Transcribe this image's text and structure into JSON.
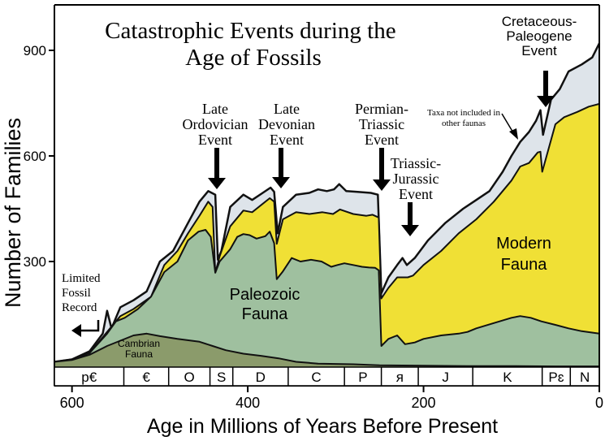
{
  "chart_data": {
    "type": "area",
    "title": "Catastrophic Events during the Age of Fossils",
    "xlabel": "Age in Millions of Years Before Present",
    "ylabel": "Number of Families",
    "xlim": [
      620,
      0
    ],
    "ylim": [
      0,
      1000
    ],
    "x_ticks": [
      600,
      400,
      200,
      0
    ],
    "y_ticks": [
      300,
      600,
      900
    ],
    "grid": false,
    "series": [
      {
        "name": "Cambrian Fauna",
        "color": "#8b9b6b",
        "points": [
          [
            620,
            15
          ],
          [
            600,
            20
          ],
          [
            580,
            35
          ],
          [
            560,
            60
          ],
          [
            545,
            75
          ],
          [
            530,
            90
          ],
          [
            515,
            95
          ],
          [
            500,
            88
          ],
          [
            480,
            80
          ],
          [
            455,
            72
          ],
          [
            440,
            60
          ],
          [
            425,
            48
          ],
          [
            405,
            38
          ],
          [
            385,
            32
          ],
          [
            365,
            25
          ],
          [
            345,
            15
          ],
          [
            320,
            10
          ],
          [
            280,
            8
          ],
          [
            250,
            5
          ],
          [
            200,
            4
          ],
          [
            150,
            3
          ],
          [
            100,
            3
          ],
          [
            50,
            2
          ],
          [
            0,
            2
          ]
        ]
      },
      {
        "name": "Paleozoic Fauna",
        "color": "#9fc09f",
        "points": [
          [
            620,
            15
          ],
          [
            600,
            22
          ],
          [
            580,
            40
          ],
          [
            560,
            95
          ],
          [
            550,
            130
          ],
          [
            540,
            140
          ],
          [
            525,
            165
          ],
          [
            510,
            200
          ],
          [
            495,
            270
          ],
          [
            480,
            300
          ],
          [
            468,
            360
          ],
          [
            456,
            385
          ],
          [
            448,
            390
          ],
          [
            442,
            370
          ],
          [
            437,
            268
          ],
          [
            432,
            300
          ],
          [
            420,
            335
          ],
          [
            412,
            370
          ],
          [
            405,
            378
          ],
          [
            398,
            375
          ],
          [
            390,
            365
          ],
          [
            380,
            372
          ],
          [
            375,
            385
          ],
          [
            370,
            352
          ],
          [
            367,
            250
          ],
          [
            360,
            272
          ],
          [
            350,
            310
          ],
          [
            340,
            300
          ],
          [
            328,
            305
          ],
          [
            316,
            300
          ],
          [
            305,
            285
          ],
          [
            298,
            290
          ],
          [
            290,
            295
          ],
          [
            280,
            290
          ],
          [
            270,
            285
          ],
          [
            262,
            283
          ],
          [
            255,
            282
          ],
          [
            251,
            275
          ],
          [
            248,
            60
          ],
          [
            240,
            80
          ],
          [
            230,
            90
          ],
          [
            221,
            65
          ],
          [
            210,
            70
          ],
          [
            200,
            80
          ],
          [
            180,
            90
          ],
          [
            160,
            95
          ],
          [
            150,
            100
          ],
          [
            140,
            110
          ],
          [
            120,
            125
          ],
          [
            100,
            140
          ],
          [
            90,
            145
          ],
          [
            78,
            140
          ],
          [
            66,
            130
          ],
          [
            50,
            120
          ],
          [
            35,
            110
          ],
          [
            20,
            102
          ],
          [
            0,
            95
          ]
        ]
      },
      {
        "name": "Modern Fauna",
        "color": "#f0e035",
        "points": [
          [
            620,
            15
          ],
          [
            600,
            22
          ],
          [
            580,
            40
          ],
          [
            560,
            100
          ],
          [
            545,
            145
          ],
          [
            530,
            165
          ],
          [
            510,
            200
          ],
          [
            495,
            290
          ],
          [
            480,
            330
          ],
          [
            468,
            380
          ],
          [
            455,
            430
          ],
          [
            445,
            470
          ],
          [
            440,
            455
          ],
          [
            437,
            268
          ],
          [
            432,
            315
          ],
          [
            420,
            400
          ],
          [
            405,
            445
          ],
          [
            395,
            440
          ],
          [
            385,
            460
          ],
          [
            375,
            480
          ],
          [
            370,
            470
          ],
          [
            367,
            350
          ],
          [
            360,
            420
          ],
          [
            345,
            440
          ],
          [
            330,
            435
          ],
          [
            315,
            440
          ],
          [
            303,
            435
          ],
          [
            295,
            448
          ],
          [
            280,
            435
          ],
          [
            265,
            430
          ],
          [
            258,
            433
          ],
          [
            251,
            425
          ],
          [
            248,
            195
          ],
          [
            240,
            225
          ],
          [
            230,
            255
          ],
          [
            225,
            255
          ],
          [
            218,
            255
          ],
          [
            212,
            260
          ],
          [
            200,
            290
          ],
          [
            180,
            330
          ],
          [
            160,
            380
          ],
          [
            140,
            420
          ],
          [
            120,
            470
          ],
          [
            100,
            530
          ],
          [
            90,
            570
          ],
          [
            80,
            580
          ],
          [
            70,
            610
          ],
          [
            67,
            612
          ],
          [
            65,
            555
          ],
          [
            60,
            600
          ],
          [
            50,
            690
          ],
          [
            40,
            710
          ],
          [
            25,
            725
          ],
          [
            12,
            740
          ],
          [
            0,
            748
          ]
        ]
      },
      {
        "name": "Taxa not included in other faunas",
        "color": "#dee4ea",
        "points": [
          [
            620,
            15
          ],
          [
            600,
            22
          ],
          [
            580,
            45
          ],
          [
            565,
            95
          ],
          [
            560,
            160
          ],
          [
            555,
            110
          ],
          [
            545,
            170
          ],
          [
            530,
            190
          ],
          [
            515,
            215
          ],
          [
            500,
            300
          ],
          [
            485,
            330
          ],
          [
            470,
            400
          ],
          [
            455,
            470
          ],
          [
            445,
            500
          ],
          [
            437,
            490
          ],
          [
            434,
            305
          ],
          [
            430,
            330
          ],
          [
            420,
            455
          ],
          [
            405,
            490
          ],
          [
            395,
            475
          ],
          [
            383,
            495
          ],
          [
            374,
            510
          ],
          [
            370,
            498
          ],
          [
            366,
            380
          ],
          [
            360,
            455
          ],
          [
            345,
            490
          ],
          [
            330,
            495
          ],
          [
            320,
            505
          ],
          [
            310,
            500
          ],
          [
            302,
            505
          ],
          [
            296,
            520
          ],
          [
            288,
            500
          ],
          [
            275,
            498
          ],
          [
            260,
            495
          ],
          [
            252,
            490
          ],
          [
            248,
            210
          ],
          [
            240,
            255
          ],
          [
            230,
            290
          ],
          [
            224,
            310
          ],
          [
            219,
            290
          ],
          [
            210,
            310
          ],
          [
            195,
            360
          ],
          [
            175,
            410
          ],
          [
            155,
            450
          ],
          [
            140,
            475
          ],
          [
            125,
            500
          ],
          [
            110,
            555
          ],
          [
            100,
            600
          ],
          [
            90,
            640
          ],
          [
            80,
            668
          ],
          [
            72,
            700
          ],
          [
            67,
            730
          ],
          [
            64,
            660
          ],
          [
            55,
            760
          ],
          [
            45,
            790
          ],
          [
            35,
            840
          ],
          [
            20,
            860
          ],
          [
            8,
            880
          ],
          [
            0,
            920
          ]
        ]
      }
    ],
    "annotations": {
      "late_ordovician": "Late Ordovician Event",
      "late_devonian": "Late Devonian Event",
      "permian_triassic": "Permian-Triassic Event",
      "triassic_jurassic": "Triassic-Jurassic Event",
      "cretaceous_paleogene": "Cretaceous-Paleogene Event",
      "taxa_note": "Taxa not included in other faunas",
      "limited_record": "Limited Fossil Record",
      "paleozoic_label": "Paleozoic Fauna",
      "modern_label": "Modern Fauna",
      "cambrian_label": "Cambrian Fauna"
    },
    "periods": [
      {
        "label": "p€",
        "start": 620,
        "end": 541
      },
      {
        "label": "€",
        "start": 541,
        "end": 490
      },
      {
        "label": "O",
        "start": 490,
        "end": 443
      },
      {
        "label": "S",
        "start": 443,
        "end": 417
      },
      {
        "label": "D",
        "start": 417,
        "end": 354
      },
      {
        "label": "C",
        "start": 354,
        "end": 290
      },
      {
        "label": "P",
        "start": 290,
        "end": 248
      },
      {
        "label": "ᴙ",
        "start": 248,
        "end": 206
      },
      {
        "label": "J",
        "start": 206,
        "end": 144
      },
      {
        "label": "K",
        "start": 144,
        "end": 65
      },
      {
        "label": "Pɛ",
        "start": 65,
        "end": 33
      },
      {
        "label": "N",
        "start": 33,
        "end": 0
      }
    ]
  }
}
